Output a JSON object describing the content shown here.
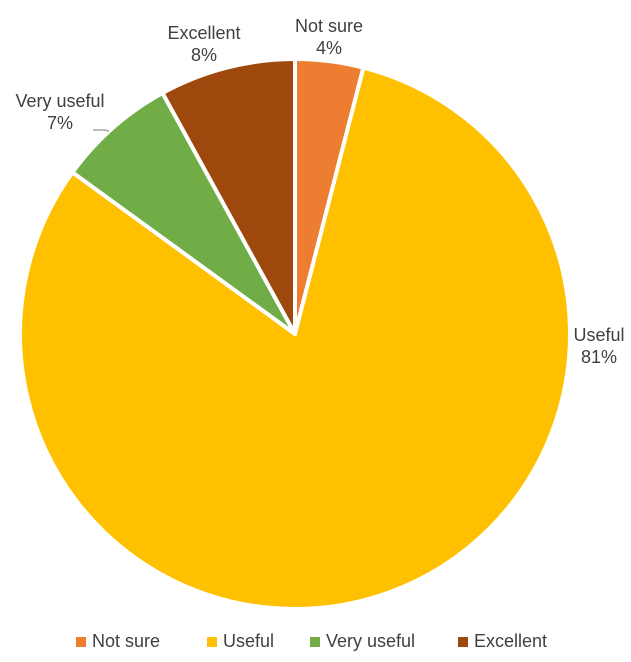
{
  "chart_data": {
    "type": "pie",
    "title": "",
    "legend_position": "bottom",
    "slices": [
      {
        "label": "Not sure",
        "value": 4,
        "value_label": "4%",
        "color": "#ED7D31"
      },
      {
        "label": "Useful",
        "value": 81,
        "value_label": "81%",
        "color": "#FFC000"
      },
      {
        "label": "Very useful",
        "value": 7,
        "value_label": "7%",
        "color": "#70AD47"
      },
      {
        "label": "Excellent",
        "value": 8,
        "value_label": "8%",
        "color": "#9E480E"
      }
    ]
  }
}
